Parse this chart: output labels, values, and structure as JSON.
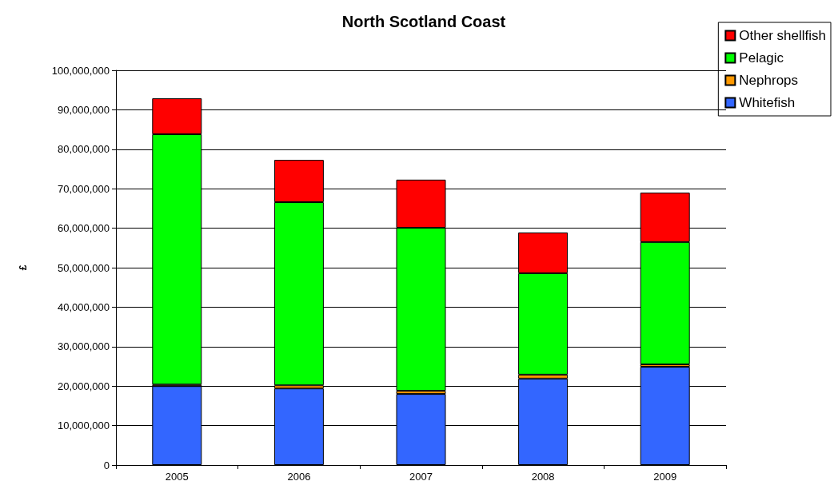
{
  "chart_data": {
    "type": "bar",
    "title": "North Scotland Coast",
    "ylabel": "£",
    "categories": [
      "2005",
      "2006",
      "2007",
      "2008",
      "2009"
    ],
    "stacked": true,
    "series": [
      {
        "name": "Whitefish",
        "color": "#3366ff",
        "values": [
          20000000,
          19400000,
          18000000,
          21900000,
          24900000
        ]
      },
      {
        "name": "Nephrops",
        "color": "#ff9900",
        "values": [
          400000,
          800000,
          800000,
          1000000,
          600000
        ]
      },
      {
        "name": "Pelagic",
        "color": "#00ff00",
        "values": [
          63400000,
          46400000,
          41300000,
          25700000,
          31000000
        ]
      },
      {
        "name": "Other shellfish",
        "color": "#ff0000",
        "values": [
          9100000,
          10700000,
          12200000,
          10300000,
          12500000
        ]
      }
    ],
    "ylim": [
      0,
      100000000
    ],
    "yticks": [
      {
        "value": 0,
        "label": "0"
      },
      {
        "value": 10000000,
        "label": "10,000,000"
      },
      {
        "value": 20000000,
        "label": "20,000,000"
      },
      {
        "value": 30000000,
        "label": "30,000,000"
      },
      {
        "value": 40000000,
        "label": "40,000,000"
      },
      {
        "value": 50000000,
        "label": "50,000,000"
      },
      {
        "value": 60000000,
        "label": "60,000,000"
      },
      {
        "value": 70000000,
        "label": "70,000,000"
      },
      {
        "value": 80000000,
        "label": "80,000,000"
      },
      {
        "value": 90000000,
        "label": "90,000,000"
      },
      {
        "value": 100000000,
        "label": "100,000,000"
      }
    ],
    "grid": "y",
    "legend": "top right"
  }
}
